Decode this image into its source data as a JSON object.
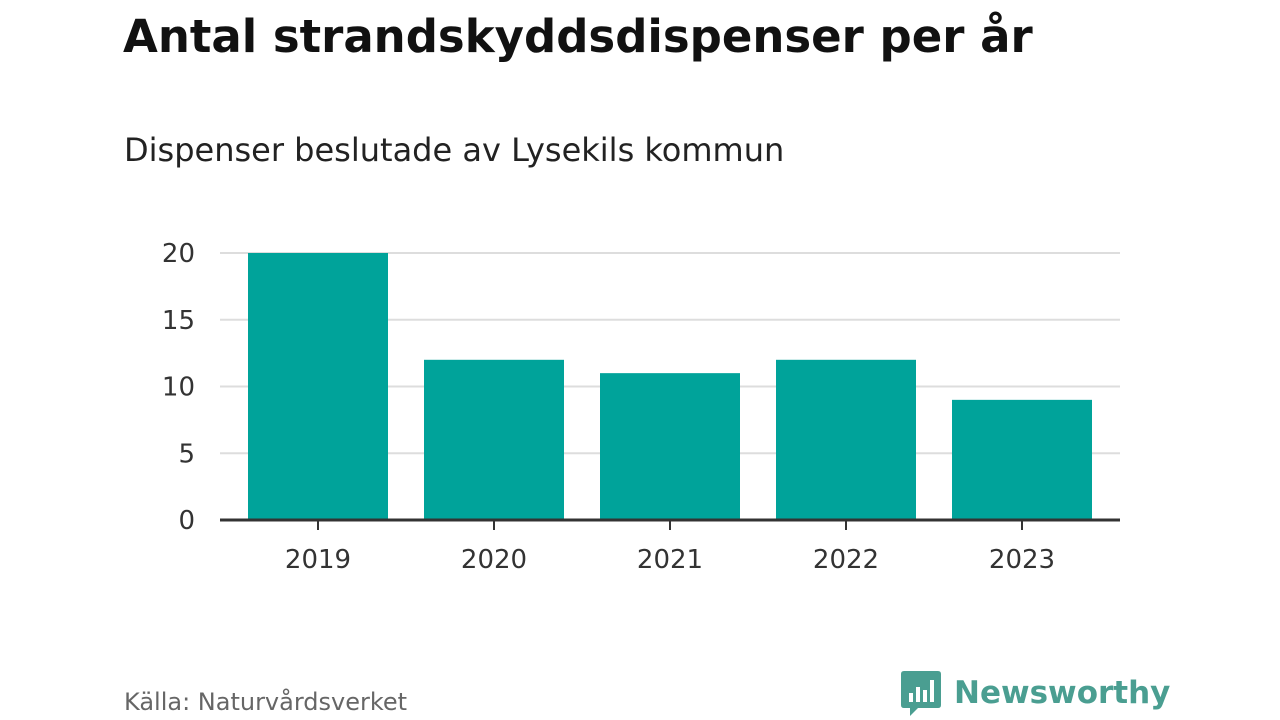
{
  "header": {
    "title": "Antal strandskyddsdispenser per år",
    "subtitle": "Dispenser beslutade av Lysekils kommun"
  },
  "footer": {
    "source": "Källa: Naturvårdsverket",
    "brand": "Newsworthy"
  },
  "colors": {
    "bar": "#00a39a",
    "grid": "#dddddd",
    "axis": "#333333",
    "brand": "#4a9e91"
  },
  "chart_data": {
    "type": "bar",
    "title": "Antal strandskyddsdispenser per år",
    "subtitle": "Dispenser beslutade av Lysekils kommun",
    "categories": [
      "2019",
      "2020",
      "2021",
      "2022",
      "2023"
    ],
    "values": [
      20,
      12,
      11,
      12,
      9
    ],
    "xlabel": "",
    "ylabel": "",
    "ylim": [
      0,
      20
    ],
    "yticks": [
      0,
      5,
      10,
      15,
      20
    ],
    "grid": true,
    "legend": "none"
  }
}
